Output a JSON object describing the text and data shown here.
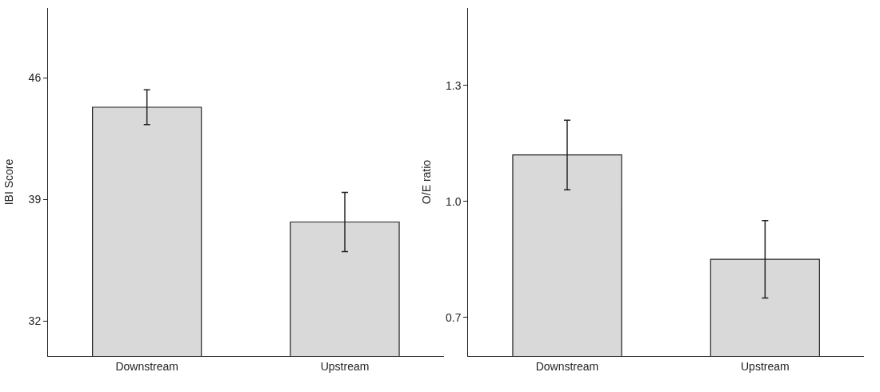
{
  "chart_data": [
    {
      "type": "bar",
      "ylabel": "IBI Score",
      "categories": [
        "Downstream",
        "Upstream"
      ],
      "values": [
        44.3,
        37.7
      ],
      "errors": [
        1.0,
        1.7
      ],
      "color": "#d9d9d9",
      "ylim": [
        30,
        50
      ],
      "yticks": [
        32,
        39,
        46
      ]
    },
    {
      "type": "bar",
      "ylabel": "O/E ratio",
      "categories": [
        "Downstream",
        "Upstream"
      ],
      "values": [
        1.12,
        0.85
      ],
      "errors": [
        0.09,
        0.1
      ],
      "color": "#d9d9d9",
      "ylim": [
        0.6,
        1.5
      ],
      "yticks": [
        0.7,
        {
          "value": 1.0,
          "label": "1.0"
        },
        1.3
      ]
    }
  ]
}
